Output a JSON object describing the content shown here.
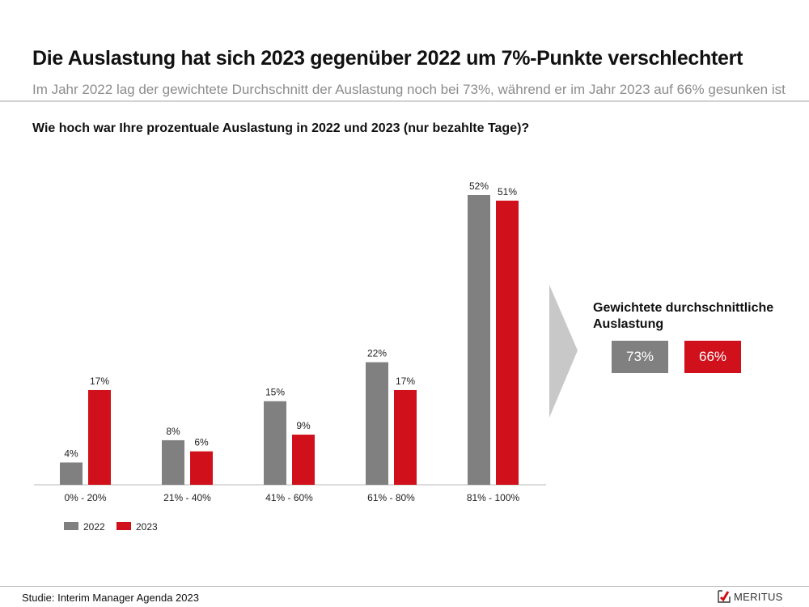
{
  "header": {
    "title": "Die Auslastung hat sich 2023 gegenüber 2022 um 7%-Punkte verschlechtert",
    "subtitle": "Im Jahr 2022 lag der gewichtete Durchschnitt der Auslastung noch bei 73%, während er im Jahr 2023 auf 66% gesunken ist"
  },
  "question": "Wie hoch war Ihre prozentuale Auslastung in 2022 und 2023 (nur bezahlte Tage)?",
  "colors": {
    "series_2022": "#808080",
    "series_2023": "#d0111b",
    "arrow": "#c8c8c8"
  },
  "chart_data": {
    "type": "bar",
    "title": "Wie hoch war Ihre prozentuale Auslastung in 2022 und 2023 (nur bezahlte Tage)?",
    "xlabel": "",
    "ylabel": "",
    "categories": [
      "0% - 20%",
      "21% - 40%",
      "41% - 60%",
      "61% - 80%",
      "81% - 100%"
    ],
    "series": [
      {
        "name": "2022",
        "values": [
          4,
          8,
          15,
          22,
          52
        ],
        "labels": [
          "4%",
          "8%",
          "15%",
          "22%",
          "52%"
        ]
      },
      {
        "name": "2023",
        "values": [
          17,
          6,
          9,
          17,
          51
        ],
        "labels": [
          "17%",
          "6%",
          "9%",
          "17%",
          "51%"
        ]
      }
    ],
    "ylim": [
      0,
      52
    ],
    "grid": false,
    "legend": "bottom-left",
    "unit": "%"
  },
  "average": {
    "title": "Gewichtete durchschnittliche Auslastung",
    "values": [
      {
        "year": "2022",
        "label": "73%"
      },
      {
        "year": "2023",
        "label": "66%"
      }
    ]
  },
  "footer": {
    "source": "Studie: Interim Manager Agenda 2023",
    "logo_text": "MERITUS"
  }
}
